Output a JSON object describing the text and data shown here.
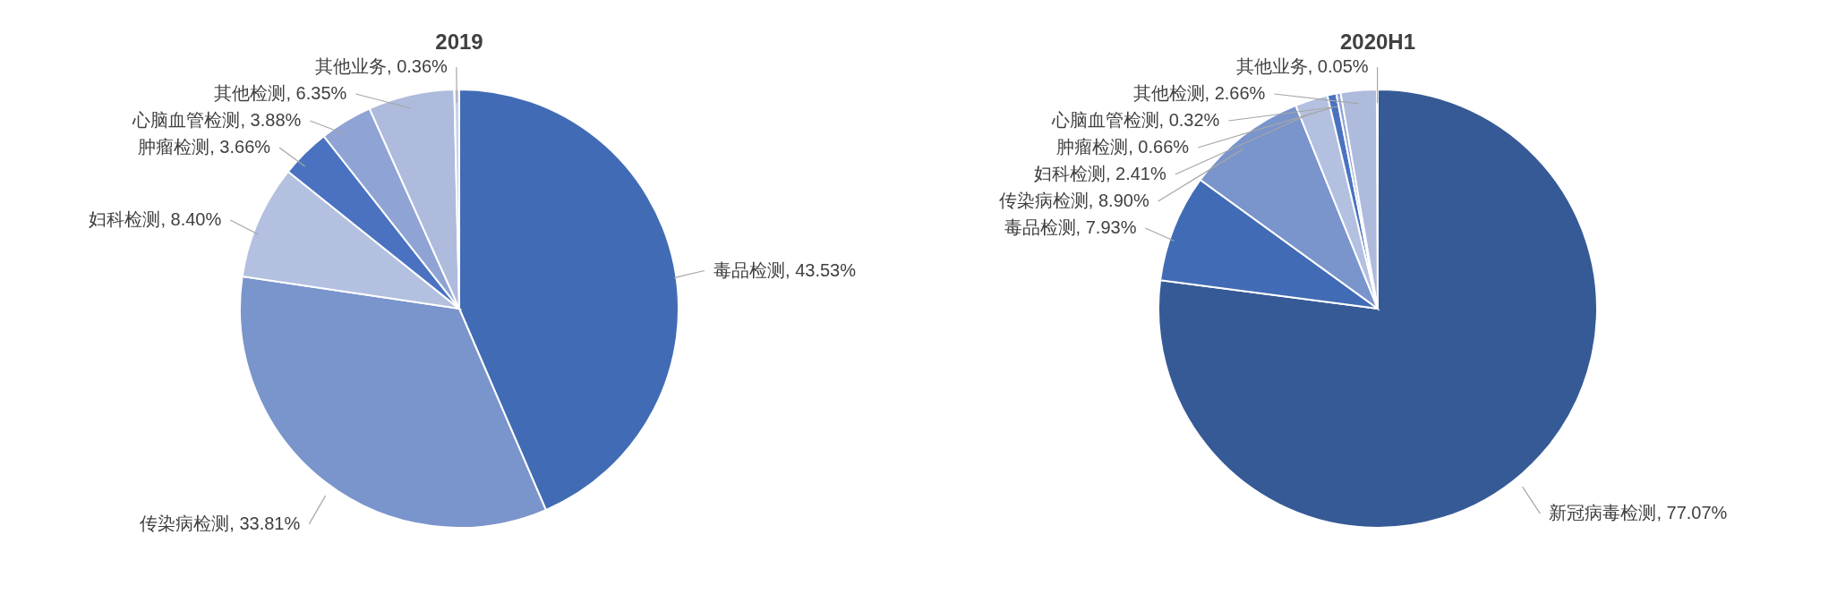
{
  "chart_data": [
    {
      "type": "pie",
      "title": "2019",
      "categories": [
        "毒品检测",
        "传染病检测",
        "妇科检测",
        "肿瘤检测",
        "心脑血管检测",
        "其他检测",
        "其他业务"
      ],
      "values": [
        43.53,
        33.81,
        8.4,
        3.66,
        3.88,
        6.35,
        0.36
      ],
      "value_labels": [
        "43.53%",
        "33.81%",
        "8.40%",
        "3.66%",
        "3.88%",
        "6.35%",
        "0.36%"
      ],
      "colors": [
        "#416cb5",
        "#7a94cc",
        "#b3c0e0",
        "#4a72c0",
        "#8fa3d4",
        "#aebbdd",
        "#c9d2ea"
      ]
    },
    {
      "type": "pie",
      "title": "2020H1",
      "categories": [
        "新冠病毒检测",
        "毒品检测",
        "传染病检测",
        "妇科检测",
        "肿瘤检测",
        "心脑血管检测",
        "其他检测",
        "其他业务"
      ],
      "values": [
        77.07,
        7.93,
        8.9,
        2.41,
        0.66,
        0.32,
        2.66,
        0.05
      ],
      "value_labels": [
        "77.07%",
        "7.93%",
        "8.90%",
        "2.41%",
        "0.66%",
        "0.32%",
        "2.66%",
        "0.05%"
      ],
      "colors": [
        "#365a96",
        "#416cb5",
        "#7a94cc",
        "#b3c0e0",
        "#4a72c0",
        "#8fa3d4",
        "#aebbdd",
        "#c9d2ea"
      ]
    }
  ]
}
